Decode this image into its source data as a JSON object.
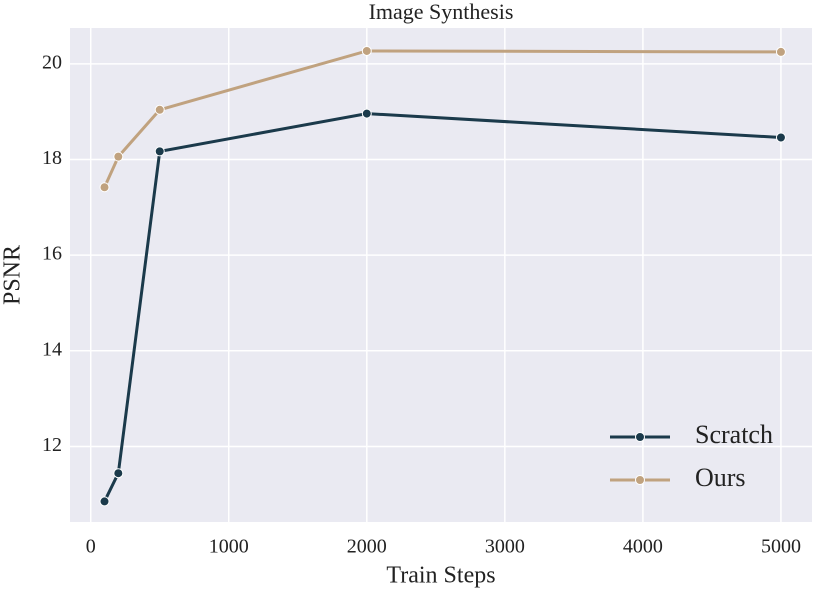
{
  "chart_data": {
    "type": "line",
    "title": "Image Synthesis",
    "x_label": "Train Steps",
    "y_label": "PSNR",
    "x": [
      100,
      200,
      500,
      2000,
      5000
    ],
    "series": [
      {
        "name": "Scratch",
        "color": "#1b3a4b",
        "values": [
          10.85,
          11.44,
          18.17,
          18.96,
          18.46
        ]
      },
      {
        "name": "Ours",
        "color": "#c0a27f",
        "values": [
          17.42,
          18.06,
          19.04,
          20.27,
          20.25
        ]
      }
    ],
    "xlim": [
      -150,
      5225
    ],
    "ylim": [
      10.42,
      20.75
    ],
    "xticks": [
      0,
      1000,
      2000,
      3000,
      4000,
      5000
    ],
    "yticks": [
      12,
      14,
      16,
      18,
      20
    ],
    "grid": true,
    "legend": "lower right"
  }
}
